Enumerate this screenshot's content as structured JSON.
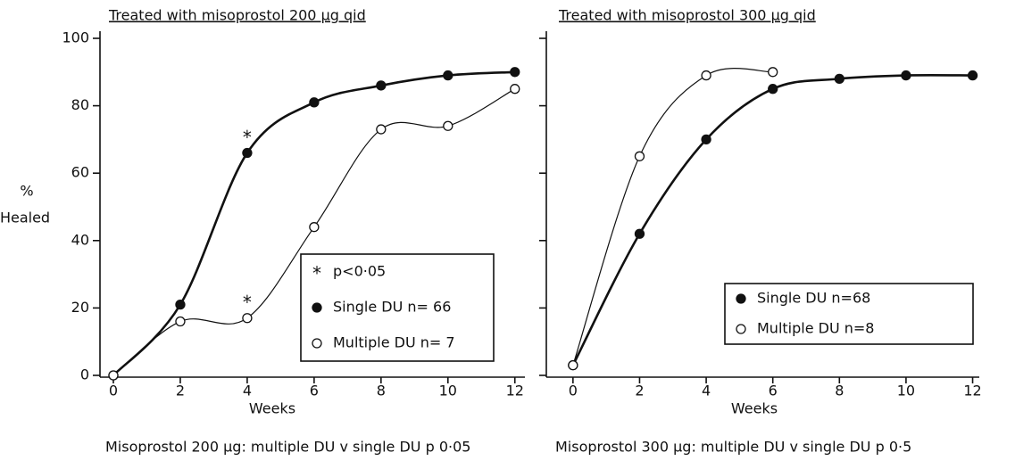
{
  "chart_data": [
    {
      "type": "line",
      "title": "Treated with misoprostol 200 µg qid",
      "ylabel": [
        "%",
        "Healed"
      ],
      "xlabel": "Weeks",
      "footer": "Misoprostol 200 µg: multiple DU v single DU p  0·05",
      "xlim": [
        -0.4,
        12.3
      ],
      "xticks": [
        0,
        2,
        4,
        6,
        8,
        10,
        12
      ],
      "ylim": [
        0,
        100
      ],
      "yticks": [
        0,
        20,
        40,
        60,
        80,
        100
      ],
      "ytick_labels": true,
      "legend": "lower right",
      "legend_extra": {
        "marker": "*",
        "text": "p<0·05"
      },
      "series": [
        {
          "name": "Single DU  n= 66",
          "color": "#111",
          "marker_fill": "#111",
          "line_width": 2.6,
          "x": [
            0,
            2,
            4,
            6,
            8,
            10,
            12
          ],
          "values": [
            0,
            21,
            66,
            81,
            86,
            89,
            90
          ]
        },
        {
          "name": "Multiple DU n= 7",
          "color": "#111",
          "marker_fill": "#fff",
          "line_width": 1.2,
          "x": [
            0,
            2,
            4,
            6,
            8,
            10,
            12
          ],
          "values": [
            0,
            16,
            17,
            44,
            73,
            74,
            85
          ]
        }
      ],
      "annotations": [
        {
          "text": "*",
          "x": 4,
          "y": 66
        },
        {
          "text": "*",
          "x": 4,
          "y": 17
        }
      ]
    },
    {
      "type": "line",
      "title": "Treated with misoprostol 300 µg qid",
      "xlabel": "Weeks",
      "footer": "Misoprostol 300 µg: multiple DU v single DU  p  0·5",
      "xlim": [
        -0.8,
        12.2
      ],
      "xticks": [
        0,
        2,
        4,
        6,
        8,
        10,
        12
      ],
      "ylim": [
        0,
        100
      ],
      "yticks": [
        0,
        20,
        40,
        60,
        80,
        100
      ],
      "ytick_labels": false,
      "legend": "lower right",
      "series": [
        {
          "name": "Single DU n=68",
          "color": "#111",
          "marker_fill": "#111",
          "line_width": 2.6,
          "x": [
            0,
            2,
            4,
            6,
            8,
            10,
            12
          ],
          "values": [
            3,
            42,
            70,
            85,
            88,
            89,
            89
          ]
        },
        {
          "name": "Multiple DU n=8",
          "color": "#111",
          "marker_fill": "#fff",
          "line_width": 1.2,
          "x": [
            0,
            2,
            4,
            6
          ],
          "values": [
            3,
            65,
            89,
            90
          ]
        }
      ]
    }
  ]
}
